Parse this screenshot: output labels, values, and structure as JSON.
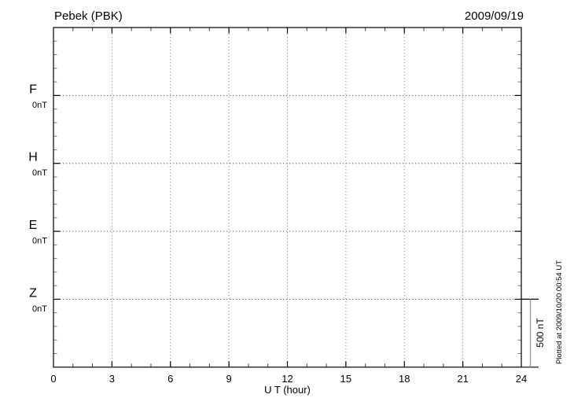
{
  "header": {
    "station_title": "Pebek (PBK)",
    "date": "2009/09/19"
  },
  "x_axis": {
    "label": "U T (hour)",
    "ticks": [
      0,
      3,
      6,
      9,
      12,
      15,
      18,
      21,
      24
    ],
    "minor_tick_interval_hours": 1,
    "major_tick_interval_hours": 3
  },
  "channels": [
    {
      "label": "F",
      "offset_label": "0nT",
      "color": "#FFA500"
    },
    {
      "label": "H",
      "offset_label": "0nT",
      "color": "#00CC00"
    },
    {
      "label": "E",
      "offset_label": "0nT",
      "color": "#1111CC"
    },
    {
      "label": "Z",
      "offset_label": "0nT",
      "color": "#EE0000"
    }
  ],
  "scale_bar": {
    "label": "500 nT"
  },
  "footer_note": "Plotted at 2009/10/20 00:54 UT",
  "colors": {
    "frame": "#000000",
    "minor_tick": "#777777",
    "grid_vertical": "#909090",
    "grid_horizontal": "#606060",
    "scale_bar_line": "#999999"
  },
  "chart_data": {
    "type": "line",
    "title": "Pebek (PBK)",
    "date": "2009/09/19",
    "xlabel": "U T (hour)",
    "xlim": [
      0,
      24
    ],
    "x_tick_labels": [
      0,
      3,
      6,
      9,
      12,
      15,
      18,
      21,
      24
    ],
    "grid": true,
    "series": [
      {
        "name": "F",
        "baseline_label": "0nT",
        "color": "#FFA500",
        "values": []
      },
      {
        "name": "H",
        "baseline_label": "0nT",
        "color": "#00CC00",
        "values": []
      },
      {
        "name": "E",
        "baseline_label": "0nT",
        "color": "#1111CC",
        "values": []
      },
      {
        "name": "Z",
        "baseline_label": "0nT",
        "color": "#EE0000",
        "values": []
      }
    ],
    "y_structure": {
      "baseline_spacing_nT": 500,
      "minor_tick_nT": 100,
      "scale_bar_nT": 500
    },
    "note": "Empty magnetogram grid; no data traces are drawn for this day"
  }
}
